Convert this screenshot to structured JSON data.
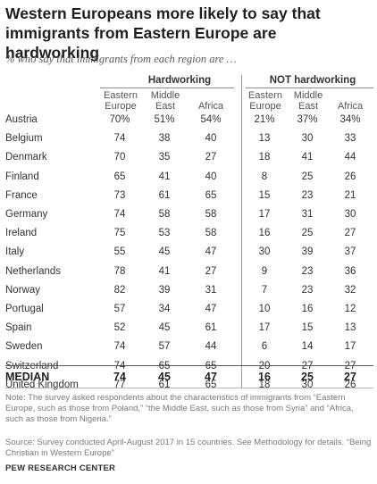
{
  "title": "Western Europeans more likely to say that immigrants from Eastern Europe are hardworking",
  "subtitle": "% who say that immigrants from each region are …",
  "chart_data": {
    "type": "table",
    "groups": [
      "Hardworking",
      "NOT hardworking"
    ],
    "columns": [
      "Eastern Europe",
      "Middle East",
      "Africa",
      "Eastern Europe",
      "Middle East",
      "Africa"
    ],
    "rows": [
      {
        "country": "Austria",
        "values": [
          "70%",
          "51%",
          "54%",
          "21%",
          "37%",
          "34%"
        ]
      },
      {
        "country": "Belgium",
        "values": [
          "74",
          "38",
          "40",
          "13",
          "30",
          "33"
        ]
      },
      {
        "country": "Denmark",
        "values": [
          "70",
          "35",
          "27",
          "18",
          "41",
          "44"
        ]
      },
      {
        "country": "Finland",
        "values": [
          "65",
          "41",
          "40",
          "8",
          "25",
          "26"
        ]
      },
      {
        "country": "France",
        "values": [
          "73",
          "61",
          "65",
          "15",
          "23",
          "21"
        ]
      },
      {
        "country": "Germany",
        "values": [
          "74",
          "58",
          "58",
          "17",
          "31",
          "30"
        ]
      },
      {
        "country": "Ireland",
        "values": [
          "75",
          "53",
          "58",
          "16",
          "25",
          "27"
        ]
      },
      {
        "country": "Italy",
        "values": [
          "55",
          "45",
          "47",
          "30",
          "39",
          "37"
        ]
      },
      {
        "country": "Netherlands",
        "values": [
          "78",
          "41",
          "27",
          "9",
          "23",
          "36"
        ]
      },
      {
        "country": "Norway",
        "values": [
          "82",
          "39",
          "31",
          "7",
          "23",
          "32"
        ]
      },
      {
        "country": "Portugal",
        "values": [
          "57",
          "34",
          "47",
          "10",
          "16",
          "12"
        ]
      },
      {
        "country": "Spain",
        "values": [
          "52",
          "45",
          "61",
          "17",
          "15",
          "13"
        ]
      },
      {
        "country": "Sweden",
        "values": [
          "74",
          "57",
          "44",
          "6",
          "14",
          "17"
        ]
      },
      {
        "country": "Switzerland",
        "values": [
          "74",
          "65",
          "65",
          "20",
          "27",
          "27"
        ]
      },
      {
        "country": "United Kingdom",
        "values": [
          "77",
          "61",
          "65",
          "18",
          "30",
          "26"
        ]
      }
    ],
    "median": {
      "label": "MEDIAN",
      "values": [
        "74",
        "45",
        "47",
        "16",
        "25",
        "27"
      ]
    }
  },
  "note": "Note: The survey asked respondents about the characteristics of immigrants from “Eastern Europe, such as those from Poland,” “the Middle East, such as those from Syria” and “Africa, such as those from Nigeria.”",
  "source": "Source: Survey conducted April-August 2017 in 15 countries. See Methodology for details. “Being Christian in Western Europe”",
  "brand": "PEW RESEARCH CENTER"
}
